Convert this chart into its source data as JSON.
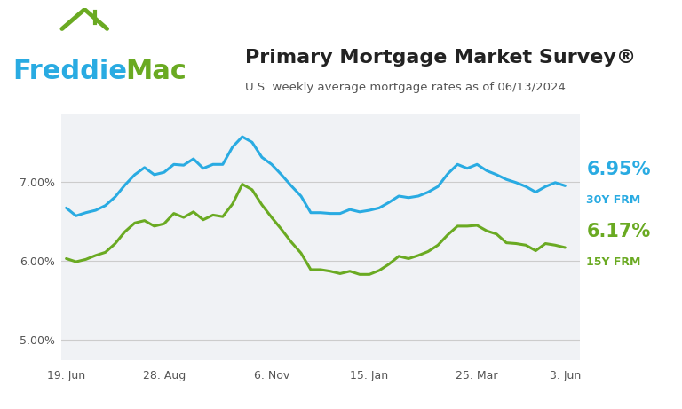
{
  "title": "Primary Mortgage Market Survey®",
  "subtitle": "U.S. weekly average mortgage rates as of 06/13/2024",
  "background_color": "#ffffff",
  "plot_bg_color": "#f0f2f5",
  "color_30y": "#29abe2",
  "color_15y": "#6aaa22",
  "label_30y": "6.95%",
  "label_30y_sub": "30Y FRM",
  "label_15y": "6.17%",
  "label_15y_sub": "15Y FRM",
  "yticks": [
    5.0,
    6.0,
    7.0
  ],
  "ylim": [
    4.75,
    7.85
  ],
  "xtick_labels": [
    "19. Jun",
    "28. Aug",
    "6. Nov",
    "15. Jan",
    "25. Mar",
    "3. Jun"
  ],
  "xtick_positions": [
    0,
    10,
    21,
    31,
    42,
    51
  ],
  "freddie_blue": "#29abe2",
  "freddie_green": "#6aaa22",
  "x_30y": [
    0,
    1,
    2,
    3,
    4,
    5,
    6,
    7,
    8,
    9,
    10,
    11,
    12,
    13,
    14,
    15,
    16,
    17,
    18,
    19,
    20,
    21,
    22,
    23,
    24,
    25,
    26,
    27,
    28,
    29,
    30,
    31,
    32,
    33,
    34,
    35,
    36,
    37,
    38,
    39,
    40,
    41,
    42,
    43,
    44,
    45,
    46,
    47,
    48,
    49,
    50,
    51
  ],
  "y_30y": [
    6.67,
    6.57,
    6.61,
    6.64,
    6.7,
    6.81,
    6.96,
    7.09,
    7.18,
    7.09,
    7.12,
    7.22,
    7.21,
    7.29,
    7.17,
    7.22,
    7.22,
    7.44,
    7.57,
    7.5,
    7.31,
    7.22,
    7.09,
    6.95,
    6.82,
    6.61,
    6.61,
    6.6,
    6.6,
    6.65,
    6.62,
    6.64,
    6.67,
    6.74,
    6.82,
    6.8,
    6.82,
    6.87,
    6.94,
    7.1,
    7.22,
    7.17,
    7.22,
    7.14,
    7.09,
    7.03,
    6.99,
    6.94,
    6.87,
    6.94,
    6.99,
    6.95
  ],
  "x_15y": [
    0,
    1,
    2,
    3,
    4,
    5,
    6,
    7,
    8,
    9,
    10,
    11,
    12,
    13,
    14,
    15,
    16,
    17,
    18,
    19,
    20,
    21,
    22,
    23,
    24,
    25,
    26,
    27,
    28,
    29,
    30,
    31,
    32,
    33,
    34,
    35,
    36,
    37,
    38,
    39,
    40,
    41,
    42,
    43,
    44,
    45,
    46,
    47,
    48,
    49,
    50,
    51
  ],
  "y_15y": [
    6.03,
    5.99,
    6.02,
    6.07,
    6.11,
    6.22,
    6.37,
    6.48,
    6.51,
    6.44,
    6.47,
    6.6,
    6.55,
    6.62,
    6.52,
    6.58,
    6.56,
    6.72,
    6.97,
    6.9,
    6.71,
    6.55,
    6.4,
    6.24,
    6.1,
    5.89,
    5.89,
    5.87,
    5.84,
    5.87,
    5.83,
    5.83,
    5.88,
    5.96,
    6.06,
    6.03,
    6.07,
    6.12,
    6.2,
    6.33,
    6.44,
    6.44,
    6.45,
    6.38,
    6.34,
    6.23,
    6.22,
    6.2,
    6.13,
    6.22,
    6.2,
    6.17
  ]
}
